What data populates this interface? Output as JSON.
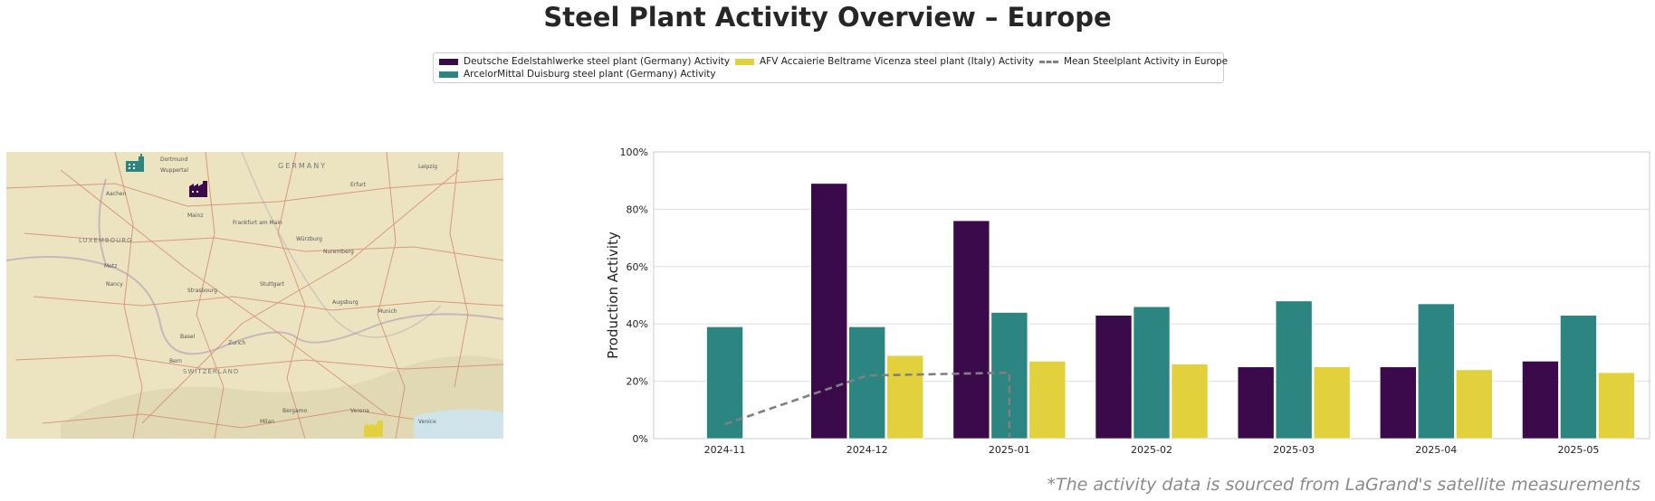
{
  "title": "Steel Plant Activity Overview – Europe",
  "source_note": "*The activity data is sourced from LaGrand's satellite measurements",
  "legend": {
    "items": [
      {
        "label": "Deutsche Edelstahlwerke steel plant (Germany) Activity",
        "color": "#3b0a4a",
        "kind": "bar"
      },
      {
        "label": "ArcelorMittal Duisburg steel plant (Germany) Activity",
        "color": "#2c8580",
        "kind": "bar"
      },
      {
        "label": "AFV Accaierie Beltrame Vicenza steel plant (Italy) Activity",
        "color": "#e2d13c",
        "kind": "bar"
      },
      {
        "label": "Mean Steelplant Activity in Europe",
        "color": "#808080",
        "kind": "dashed-line"
      }
    ]
  },
  "map": {
    "labels": [
      "GERMANY",
      "LUXEMBOURG",
      "SWITZERLAND",
      "Frankfurt am Main",
      "Stuttgart",
      "Munich",
      "Nuremberg",
      "Strasbourg",
      "Zurich",
      "Milan",
      "Venice",
      "Leipzig",
      "Erfurt",
      "Dortmund",
      "Wuppertal",
      "Aachen",
      "Mainz",
      "Würzburg",
      "Augsburg",
      "Basel",
      "Bern",
      "Verona",
      "Bergamo",
      "Nancy",
      "Metz"
    ],
    "markers": [
      {
        "name": "ArcelorMittal Duisburg",
        "icon": "factory-icon",
        "color": "#2c8580"
      },
      {
        "name": "Deutsche Edelstahlwerke",
        "icon": "factory-icon",
        "color": "#3b0a4a"
      },
      {
        "name": "AFV Accaierie Beltrame Vicenza",
        "icon": "factory-icon",
        "color": "#e2d13c"
      }
    ]
  },
  "chart_data": {
    "type": "bar",
    "title": "",
    "xlabel": "",
    "ylabel": "Production Activity",
    "ylim": [
      0,
      100
    ],
    "y_ticks": [
      "0%",
      "20%",
      "40%",
      "60%",
      "80%",
      "100%"
    ],
    "categories": [
      "2024-11",
      "2024-12",
      "2025-01",
      "2025-02",
      "2025-03",
      "2025-04",
      "2025-05"
    ],
    "grid": "horizontal",
    "series": [
      {
        "name": "Deutsche Edelstahlwerke steel plant (Germany) Activity",
        "color": "#3b0a4a",
        "values": [
          null,
          89,
          76,
          43,
          25,
          25,
          27
        ]
      },
      {
        "name": "ArcelorMittal Duisburg steel plant (Germany) Activity",
        "color": "#2c8580",
        "values": [
          39,
          39,
          44,
          46,
          48,
          47,
          43
        ]
      },
      {
        "name": "AFV Accaierie Beltrame Vicenza steel plant (Italy) Activity",
        "color": "#e2d13c",
        "values": [
          null,
          29,
          27,
          26,
          25,
          24,
          23
        ]
      }
    ],
    "mean_line": {
      "name": "Mean Steelplant Activity in Europe",
      "color": "#808080",
      "style": "dashed",
      "points": [
        {
          "x": "2024-11",
          "y": 5
        },
        {
          "x": "2024-12",
          "y": 22
        },
        {
          "x": "2025-01",
          "y": 23
        },
        {
          "x": "2025-01",
          "y": 0
        }
      ]
    }
  }
}
